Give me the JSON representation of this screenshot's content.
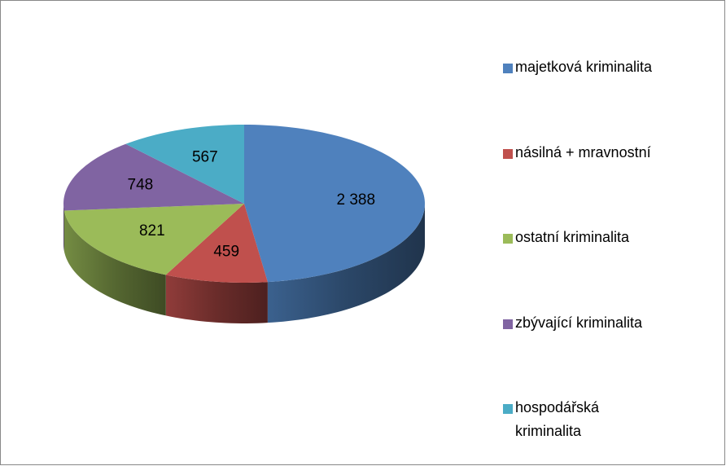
{
  "chart_data": {
    "type": "pie3d",
    "categories": [
      "majetková kriminalita",
      "násilná + mravnostní",
      "ostatní kriminalita",
      "zbývající kriminalita",
      "hospodářská kriminalita"
    ],
    "values": [
      2388,
      459,
      821,
      748,
      567
    ],
    "value_labels": [
      "2 388",
      "459",
      "821",
      "748",
      "567"
    ],
    "colors": [
      "#4f81bd",
      "#c0504d",
      "#9bbb59",
      "#8064a2",
      "#4bacc6"
    ],
    "legend": "right"
  }
}
